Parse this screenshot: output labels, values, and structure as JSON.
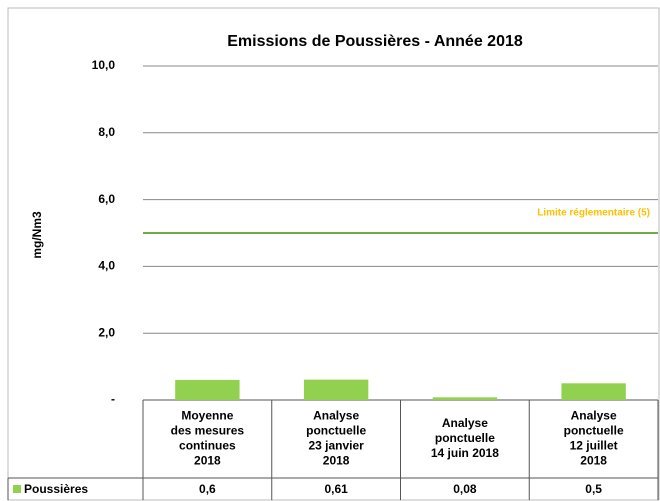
{
  "chart_data": {
    "type": "bar",
    "title": "Emissions de Poussières - Année 2018",
    "y_label": "mg/Nm3",
    "categories": [
      "Moyenne\ndes mesures\ncontinues\n2018",
      "Analyse\nponctuelle\n23 janvier\n2018",
      "Analyse\nponctuelle\n14 juin 2018",
      "Analyse\nponctuelle\n12 juillet\n2018"
    ],
    "series": [
      {
        "name": "Poussières",
        "color": "#92d050",
        "values": [
          0.6,
          0.61,
          0.08,
          0.5
        ],
        "value_labels": [
          "0,6",
          "0,61",
          "0,08",
          "0,5"
        ]
      }
    ],
    "ylim": [
      0,
      10
    ],
    "yticks": [
      {
        "value": 0,
        "label": "-"
      },
      {
        "value": 2,
        "label": "2,0"
      },
      {
        "value": 4,
        "label": "4,0"
      },
      {
        "value": 6,
        "label": "6,0"
      },
      {
        "value": 8,
        "label": "8,0"
      },
      {
        "value": 10,
        "label": "10,0"
      }
    ],
    "grid": true,
    "limit": {
      "value": 5,
      "label": "Limite réglementaire (5)",
      "color": "#70ad47",
      "label_color": "#ffc000"
    }
  }
}
